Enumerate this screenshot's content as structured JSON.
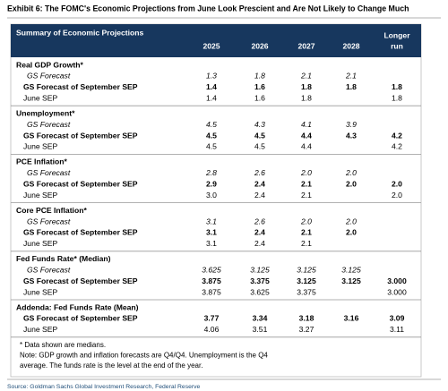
{
  "title": "Exhibit 6: The FOMC's Economic Projections from June Look Prescient and Are Not Likely to Change Much",
  "table": {
    "heading": "Summary of Economic Projections",
    "columns": [
      "2025",
      "2026",
      "2027",
      "2028",
      "Longer",
      "run"
    ],
    "sections": [
      {
        "title": "Real GDP Growth*",
        "rows": [
          {
            "label": "GS Forecast",
            "values": [
              "1.3",
              "1.8",
              "2.1",
              "2.1",
              null
            ]
          },
          {
            "label": "GS Forecast of September SEP",
            "values": [
              "1.4",
              "1.6",
              "1.8",
              "1.8",
              "1.8"
            ]
          },
          {
            "label": "June SEP",
            "values": [
              "1.4",
              "1.6",
              "1.8",
              null,
              "1.8"
            ]
          }
        ]
      },
      {
        "title": "Unemployment*",
        "rows": [
          {
            "label": "GS Forecast",
            "values": [
              "4.5",
              "4.3",
              "4.1",
              "3.9",
              null
            ]
          },
          {
            "label": "GS Forecast of September SEP",
            "values": [
              "4.5",
              "4.5",
              "4.4",
              "4.3",
              "4.2"
            ]
          },
          {
            "label": "June SEP",
            "values": [
              "4.5",
              "4.5",
              "4.4",
              null,
              "4.2"
            ]
          }
        ]
      },
      {
        "title": "PCE Inflation*",
        "rows": [
          {
            "label": "GS Forecast",
            "values": [
              "2.8",
              "2.6",
              "2.0",
              "2.0",
              null
            ]
          },
          {
            "label": "GS Forecast of September SEP",
            "values": [
              "2.9",
              "2.4",
              "2.1",
              "2.0",
              "2.0"
            ]
          },
          {
            "label": "June SEP",
            "values": [
              "3.0",
              "2.4",
              "2.1",
              null,
              "2.0"
            ]
          }
        ]
      },
      {
        "title": "Core PCE Inflation*",
        "rows": [
          {
            "label": "GS Forecast",
            "values": [
              "3.1",
              "2.6",
              "2.0",
              "2.0",
              null
            ]
          },
          {
            "label": "GS Forecast of September SEP",
            "values": [
              "3.1",
              "2.4",
              "2.1",
              "2.0",
              null
            ]
          },
          {
            "label": "June SEP",
            "values": [
              "3.1",
              "2.4",
              "2.1",
              null,
              null
            ]
          }
        ]
      },
      {
        "title": "Fed Funds Rate* (Median)",
        "rows": [
          {
            "label": "GS Forecast",
            "values": [
              "3.625",
              "3.125",
              "3.125",
              "3.125",
              null
            ]
          },
          {
            "label": "GS Forecast of September SEP",
            "values": [
              "3.875",
              "3.375",
              "3.125",
              "3.125",
              "3.000"
            ]
          },
          {
            "label": "June SEP",
            "values": [
              "3.875",
              "3.625",
              "3.375",
              null,
              "3.000"
            ]
          }
        ]
      },
      {
        "title": "Addenda: Fed Funds Rate (Mean)",
        "rows": [
          {
            "label": "GS Forecast of September SEP",
            "values": [
              "3.77",
              "3.34",
              "3.18",
              "3.16",
              "3.09"
            ]
          },
          {
            "label": "June SEP",
            "values": [
              "4.06",
              "3.51",
              "3.27",
              null,
              "3.11"
            ]
          }
        ]
      }
    ]
  },
  "notes": [
    "* Data shown are medians.",
    "Note: GDP growth and inflation forecasts are Q4/Q4.  Unemployment is the Q4",
    "average.  The funds rate is the level at the end of the year."
  ],
  "source": "Source: Goldman Sachs Global Investment Research, Federal Reserve"
}
